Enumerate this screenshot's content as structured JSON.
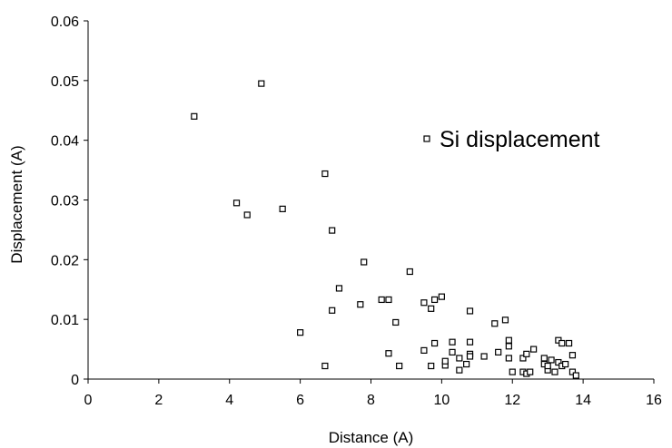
{
  "chart_data": {
    "type": "scatter",
    "title": "",
    "xlabel": "Distance (A)",
    "ylabel": "Displacement (A)",
    "xlim": [
      0,
      16
    ],
    "ylim": [
      0,
      0.06
    ],
    "x_ticks": [
      "0",
      "2",
      "4",
      "6",
      "8",
      "10",
      "12",
      "14",
      "16"
    ],
    "y_ticks": [
      "0",
      "0.01",
      "0.02",
      "0.03",
      "0.04",
      "0.05",
      "0.06"
    ],
    "grid": false,
    "legend_position": "right",
    "marker": "hollow-square",
    "series": [
      {
        "name": "Si displacement",
        "points": [
          [
            3.0,
            0.044
          ],
          [
            4.9,
            0.0495
          ],
          [
            4.2,
            0.0295
          ],
          [
            4.5,
            0.0275
          ],
          [
            5.5,
            0.0285
          ],
          [
            6.7,
            0.0344
          ],
          [
            6.9,
            0.0249
          ],
          [
            7.8,
            0.0196
          ],
          [
            7.1,
            0.0152
          ],
          [
            6.9,
            0.0115
          ],
          [
            6.0,
            0.0078
          ],
          [
            6.7,
            0.0022
          ],
          [
            7.7,
            0.0125
          ],
          [
            8.3,
            0.0133
          ],
          [
            8.5,
            0.0133
          ],
          [
            8.7,
            0.0095
          ],
          [
            8.5,
            0.0043
          ],
          [
            8.8,
            0.0022
          ],
          [
            9.1,
            0.018
          ],
          [
            9.5,
            0.0128
          ],
          [
            9.7,
            0.0118
          ],
          [
            9.8,
            0.0133
          ],
          [
            10.0,
            0.0138
          ],
          [
            9.5,
            0.0048
          ],
          [
            9.7,
            0.0022
          ],
          [
            9.8,
            0.006
          ],
          [
            10.1,
            0.0023
          ],
          [
            10.1,
            0.003
          ],
          [
            10.3,
            0.0062
          ],
          [
            10.3,
            0.0045
          ],
          [
            10.5,
            0.0035
          ],
          [
            10.5,
            0.0015
          ],
          [
            10.7,
            0.0025
          ],
          [
            10.8,
            0.0114
          ],
          [
            10.8,
            0.0062
          ],
          [
            10.8,
            0.0042
          ],
          [
            10.8,
            0.0038
          ],
          [
            11.2,
            0.0038
          ],
          [
            11.5,
            0.0093
          ],
          [
            11.6,
            0.0045
          ],
          [
            11.8,
            0.0099
          ],
          [
            11.9,
            0.0065
          ],
          [
            11.9,
            0.0055
          ],
          [
            11.9,
            0.0035
          ],
          [
            12.0,
            0.0012
          ],
          [
            12.3,
            0.0035
          ],
          [
            12.3,
            0.0012
          ],
          [
            12.4,
            0.0042
          ],
          [
            12.4,
            0.0009
          ],
          [
            12.5,
            0.0012
          ],
          [
            12.6,
            0.005
          ],
          [
            12.9,
            0.0035
          ],
          [
            12.9,
            0.0025
          ],
          [
            13.0,
            0.0015
          ],
          [
            13.0,
            0.0022
          ],
          [
            13.1,
            0.0032
          ],
          [
            13.2,
            0.0012
          ],
          [
            13.3,
            0.0065
          ],
          [
            13.3,
            0.0028
          ],
          [
            13.4,
            0.006
          ],
          [
            13.4,
            0.0022
          ],
          [
            13.5,
            0.0025
          ],
          [
            13.6,
            0.006
          ],
          [
            13.7,
            0.0012
          ],
          [
            13.7,
            0.004
          ],
          [
            13.8,
            0.0006
          ]
        ]
      }
    ]
  }
}
